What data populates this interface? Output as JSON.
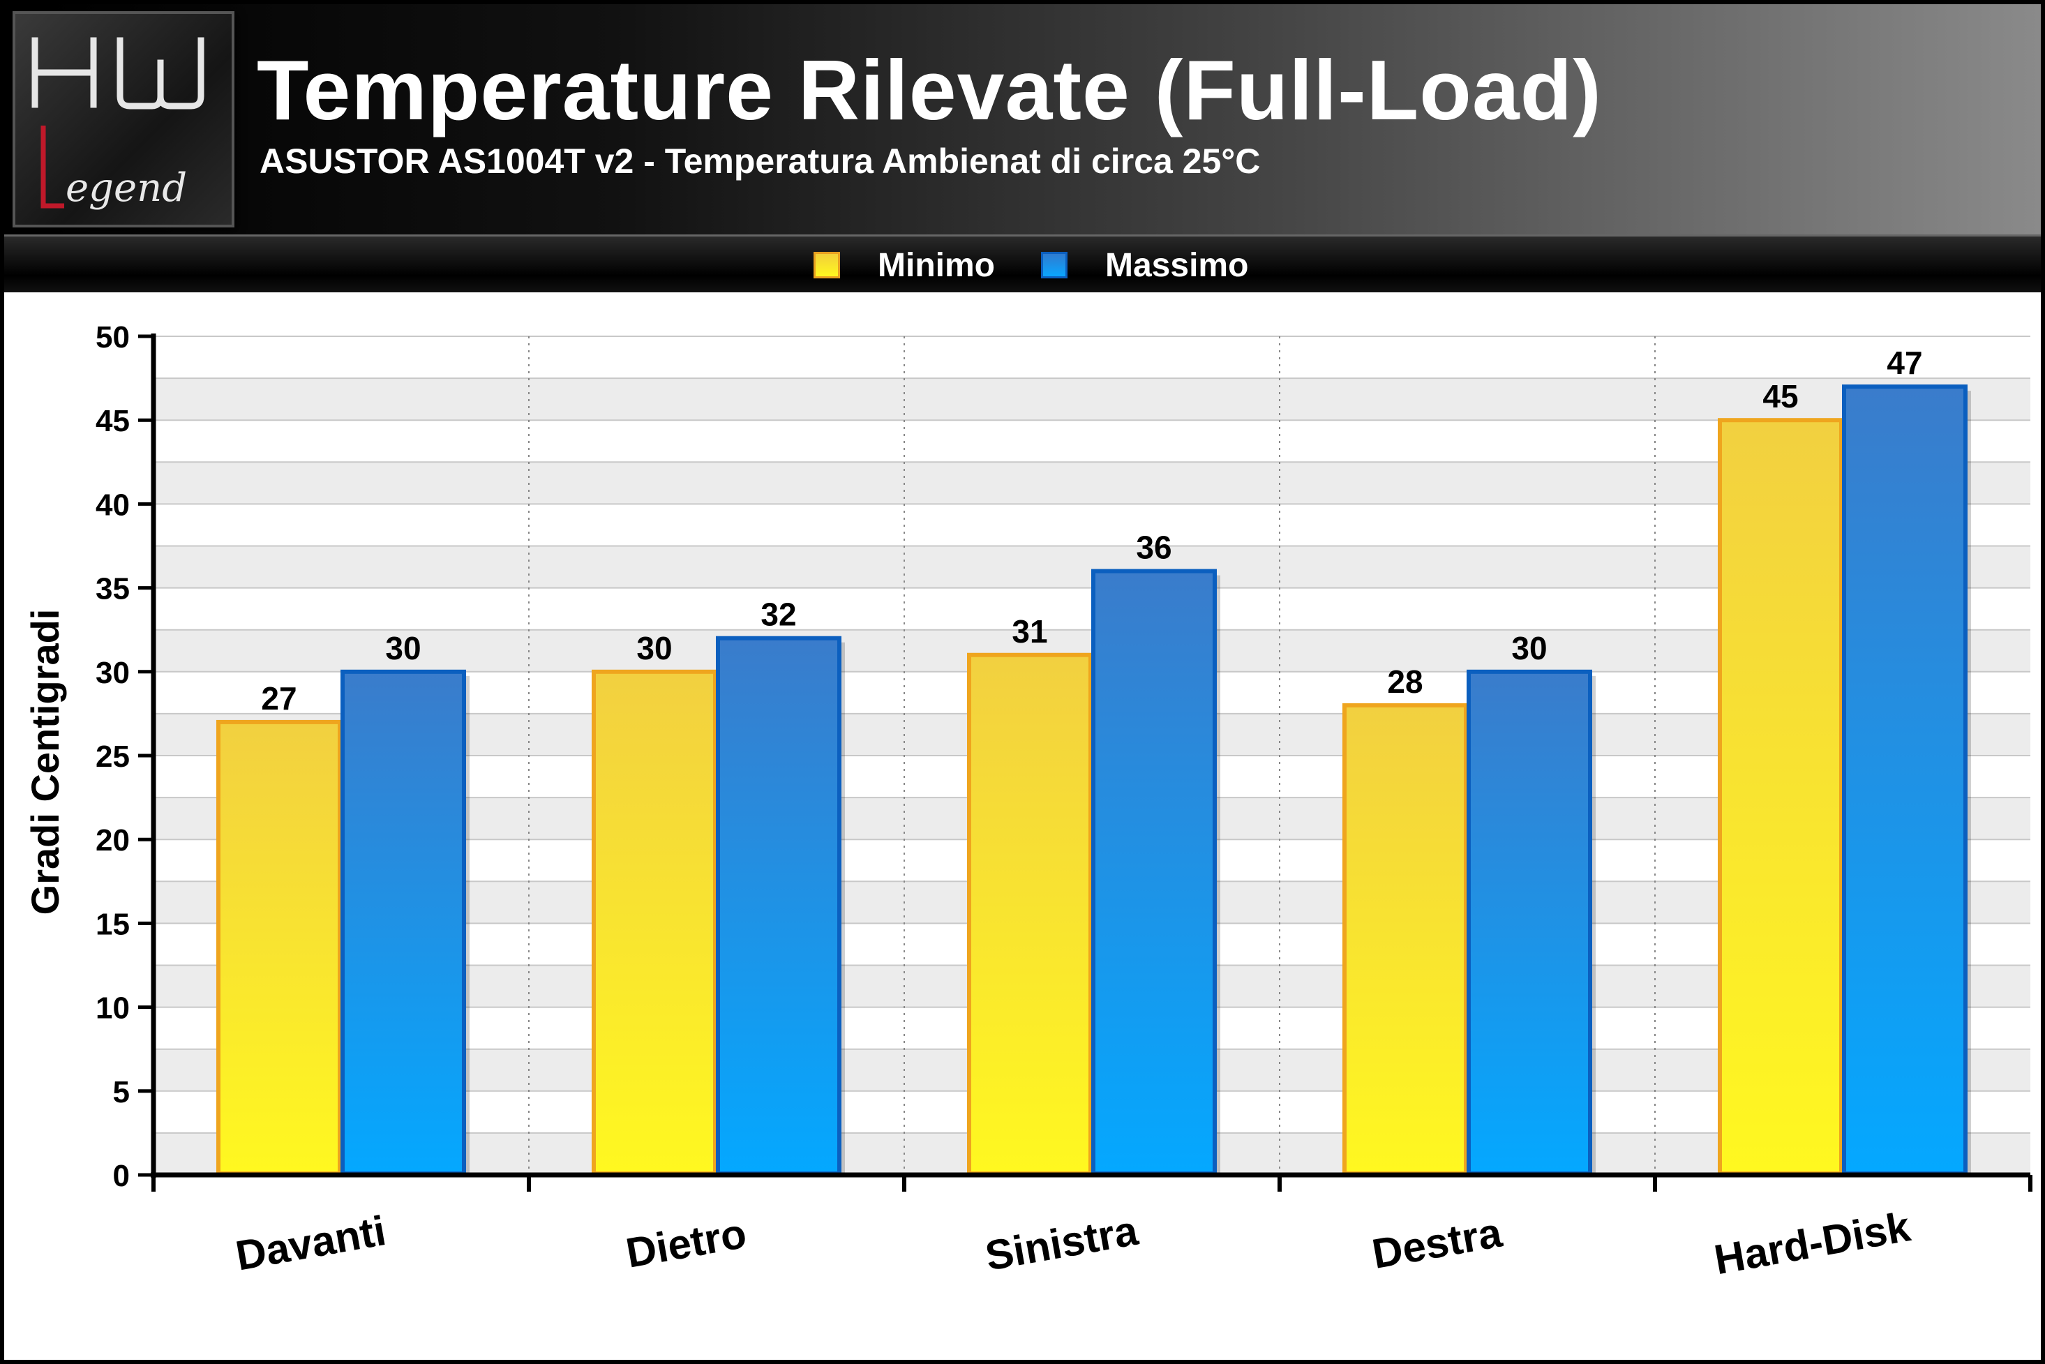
{
  "header": {
    "logo_top": "HW",
    "logo_bottom": "Legend",
    "title": "Temperature Rilevate  (Full-Load)",
    "subtitle": "ASUSTOR AS1004T v2 - Temperatura Ambienat di circa 25°C"
  },
  "colors": {
    "minimo_fill_top": "#f2d040",
    "minimo_fill_bottom": "#fff820",
    "minimo_border": "#efa51e",
    "massimo_fill_top": "#3a7ccb",
    "massimo_fill_bottom": "#04a8ff",
    "massimo_border": "#0b5fbf"
  },
  "chart_data": {
    "type": "bar",
    "title": "Temperature Rilevate  (Full-Load)",
    "subtitle": "ASUSTOR AS1004T v2 - Temperatura Ambienat di circa 25°C",
    "xlabel": "",
    "ylabel": "Gradi Centigradi",
    "ylim": [
      0,
      50
    ],
    "yticks": [
      0,
      5,
      10,
      15,
      20,
      25,
      30,
      35,
      40,
      45,
      50
    ],
    "grid": true,
    "legend_position": "top-center",
    "categories": [
      "Davanti",
      "Dietro",
      "Sinistra",
      "Destra",
      "Hard-Disk"
    ],
    "series": [
      {
        "name": "Minimo",
        "values": [
          27,
          30,
          31,
          28,
          45
        ]
      },
      {
        "name": "Massimo",
        "values": [
          30,
          32,
          36,
          30,
          47
        ]
      }
    ]
  }
}
